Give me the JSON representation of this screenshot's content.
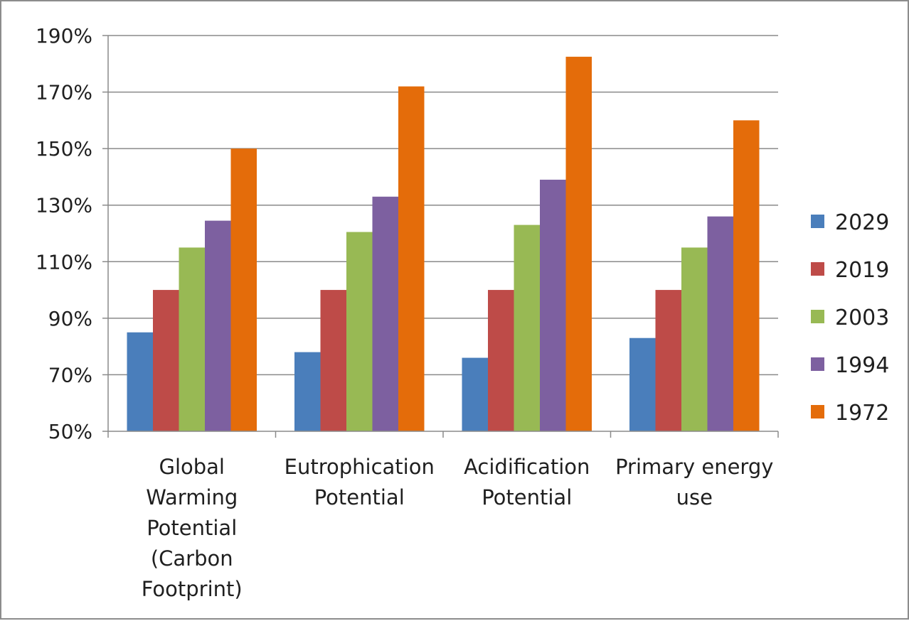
{
  "chart_data": {
    "type": "bar",
    "categories": [
      [
        "Global",
        "Warming",
        "Potential",
        "(Carbon",
        "Footprint)"
      ],
      [
        "Eutrophication",
        "Potential"
      ],
      [
        "Acidification",
        "Potential"
      ],
      [
        "Primary energy",
        "use"
      ]
    ],
    "series": [
      {
        "name": "2029",
        "color": "#4a7ebb",
        "values": [
          85,
          78,
          76,
          83
        ]
      },
      {
        "name": "2019",
        "color": "#be4b48",
        "values": [
          100,
          100,
          100,
          100
        ]
      },
      {
        "name": "2003",
        "color": "#98b954",
        "values": [
          115,
          120.5,
          123,
          115
        ]
      },
      {
        "name": "1994",
        "color": "#7d60a0",
        "values": [
          124.5,
          133,
          139,
          126
        ]
      },
      {
        "name": "1972",
        "color": "#e46c0a",
        "values": [
          150,
          172,
          182.5,
          160
        ]
      }
    ],
    "ylim": [
      50,
      190
    ],
    "yticks": [
      50,
      70,
      90,
      110,
      130,
      150,
      170,
      190
    ],
    "ytick_labels": [
      "50%",
      "70%",
      "90%",
      "110%",
      "130%",
      "150%",
      "170%",
      "190%"
    ],
    "grid": true,
    "legend": "right",
    "title": "",
    "xlabel": "",
    "ylabel": ""
  }
}
